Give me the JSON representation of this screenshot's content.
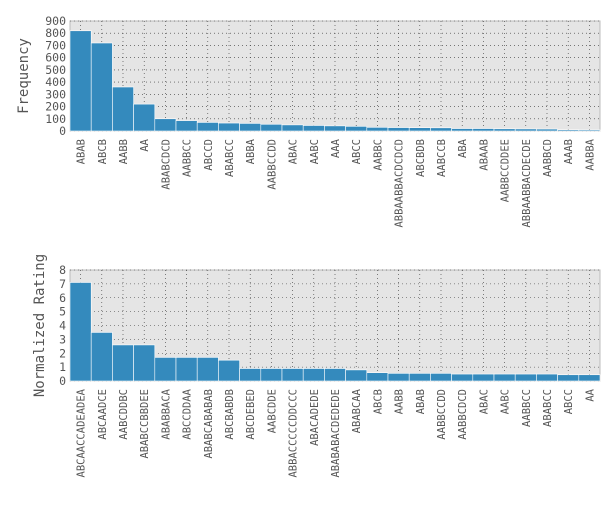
{
  "chart_data": [
    {
      "type": "bar",
      "title": "",
      "xlabel": "",
      "ylabel": "Frequency",
      "ylim": [
        0,
        900
      ],
      "yticks": [
        0,
        100,
        200,
        300,
        400,
        500,
        600,
        700,
        800,
        900
      ],
      "grid": true,
      "categories": [
        "ABAB",
        "ABCB",
        "AABB",
        "AA",
        "ABABCDCD",
        "AABBCC",
        "ABCCD",
        "ABABCC",
        "ABBA",
        "AABBCCDD",
        "ABAC",
        "AABC",
        "AAA",
        "ABCC",
        "AABBC",
        "ABBAABBACDCDCD",
        "ABCBDB",
        "AABCCB",
        "ABA",
        "ABAAB",
        "AABBCCDDEE",
        "ABBAABBACDECDE",
        "AABBCD",
        "AAAB",
        "AABBA"
      ],
      "values": [
        820,
        720,
        360,
        220,
        100,
        85,
        70,
        65,
        62,
        55,
        50,
        45,
        42,
        38,
        30,
        28,
        27,
        26,
        20,
        20,
        18,
        17,
        16,
        10,
        9
      ]
    },
    {
      "type": "bar",
      "title": "",
      "xlabel": "",
      "ylabel": "Normalized Rating",
      "ylim": [
        0,
        8
      ],
      "yticks": [
        0,
        1,
        2,
        3,
        4,
        5,
        6,
        7,
        8
      ],
      "grid": true,
      "categories": [
        "ABCAACCADEADEA",
        "ABCAADCE",
        "AABCDDBC",
        "ABABCCBBDEE",
        "ABABBACA",
        "ABCCDDAA",
        "ABABCABABAB",
        "ABCBABDB",
        "ABCDEBED",
        "AABCDDE",
        "ABBACCCCCDDCCC",
        "ABACADEDE",
        "ABABABACDEDEDE",
        "ABABCAA",
        "ABCB",
        "AABB",
        "ABAB",
        "AABBCCDD",
        "AABBCDCD",
        "ABAC",
        "AABC",
        "AABBCC",
        "ABABCC",
        "ABCC",
        "AA"
      ],
      "values": [
        7.1,
        3.5,
        2.6,
        2.6,
        1.7,
        1.7,
        1.7,
        1.5,
        0.9,
        0.9,
        0.9,
        0.9,
        0.9,
        0.8,
        0.6,
        0.55,
        0.55,
        0.55,
        0.5,
        0.5,
        0.5,
        0.5,
        0.5,
        0.45,
        0.45
      ]
    }
  ]
}
